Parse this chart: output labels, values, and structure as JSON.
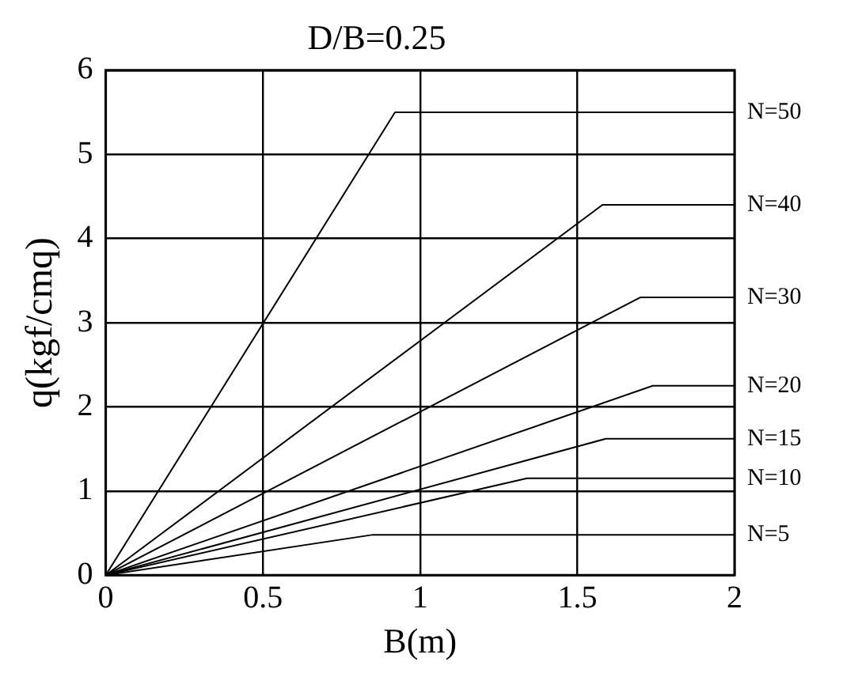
{
  "chart_data": {
    "type": "line",
    "title": "D/B=0.25",
    "xlabel": "B(m)",
    "ylabel": "q(kgf/cmq)",
    "xlim": [
      0,
      2
    ],
    "ylim": [
      0,
      6
    ],
    "xticks": [
      0,
      0.5,
      1,
      1.5,
      2
    ],
    "yticks": [
      0,
      1,
      2,
      3,
      4,
      5,
      6
    ],
    "grid": true,
    "legend": false,
    "marker": "none",
    "line_style": "solid",
    "series": [
      {
        "name": "N=50",
        "color": "#000000",
        "x": [
          0,
          0.92,
          2
        ],
        "values": [
          0,
          5.5,
          5.5
        ]
      },
      {
        "name": "N=40",
        "color": "#000000",
        "x": [
          0,
          1.58,
          2
        ],
        "values": [
          0,
          4.4,
          4.4
        ]
      },
      {
        "name": "N=30",
        "color": "#000000",
        "x": [
          0,
          1.7,
          2
        ],
        "values": [
          0,
          3.3,
          3.3
        ]
      },
      {
        "name": "N=20",
        "color": "#000000",
        "x": [
          0,
          1.74,
          2
        ],
        "values": [
          0,
          2.25,
          2.25
        ]
      },
      {
        "name": "N=15",
        "color": "#000000",
        "x": [
          0,
          1.59,
          2
        ],
        "values": [
          0,
          1.62,
          1.62
        ]
      },
      {
        "name": "N=10",
        "color": "#000000",
        "x": [
          0,
          1.34,
          2
        ],
        "values": [
          0,
          1.15,
          1.15
        ]
      },
      {
        "name": "N=5",
        "color": "#000000",
        "x": [
          0,
          0.85,
          2
        ],
        "values": [
          0,
          0.48,
          0.48
        ]
      }
    ]
  }
}
